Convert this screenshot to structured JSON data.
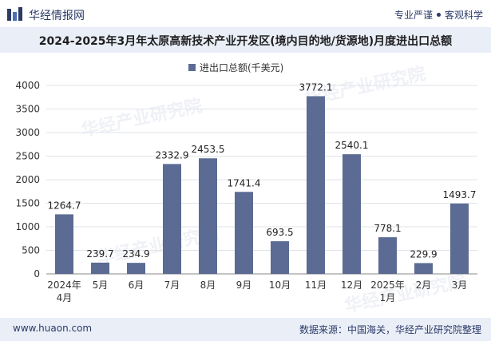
{
  "header": {
    "brand": "华经情报网",
    "tagline_left": "专业严谨",
    "tagline_right": "客观科学"
  },
  "chart_data": {
    "type": "bar",
    "title": "2024-2025年3月年太原高新技术产业开发区(境内目的地/货源地)月度进出口总额",
    "legend": "进出口总额(千美元)",
    "categories": [
      [
        "2024年",
        "4月"
      ],
      [
        "5月"
      ],
      [
        "6月"
      ],
      [
        "7月"
      ],
      [
        "8月"
      ],
      [
        "9月"
      ],
      [
        "10月"
      ],
      [
        "11月"
      ],
      [
        "12月"
      ],
      [
        "2025年",
        "1月"
      ],
      [
        "2月"
      ],
      [
        "3月"
      ]
    ],
    "values": [
      1264.7,
      239.7,
      234.9,
      2332.9,
      2453.5,
      1741.4,
      693.5,
      3772.1,
      2540.1,
      778.1,
      229.9,
      1493.7
    ],
    "ylim": [
      0,
      4000
    ],
    "yticks": [
      0,
      500,
      1000,
      1500,
      2000,
      2500,
      3000,
      3500,
      4000
    ],
    "bar_color": "#5b6b93",
    "xlabel": "",
    "ylabel": ""
  },
  "footer": {
    "site": "www.huaon.com",
    "source": "数据来源：中国海关，华经产业研究院整理"
  },
  "watermark": "华经产业研究院"
}
